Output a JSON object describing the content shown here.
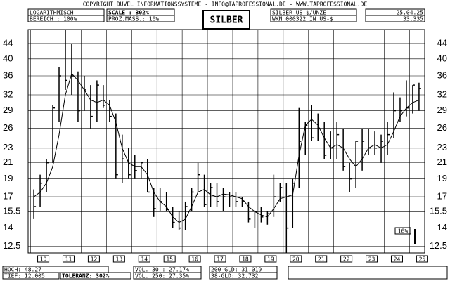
{
  "chart_data": {
    "type": "ohlc",
    "title": "SILBER",
    "log_scale": true,
    "grid": true,
    "color": "#000000",
    "xlim": [
      2009.9,
      2025.6
    ],
    "ylim": [
      12,
      48
    ],
    "xticks": [
      {
        "value": 2010.5,
        "label": "10"
      },
      {
        "value": 2011.5,
        "label": "11"
      },
      {
        "value": 2012.5,
        "label": "12"
      },
      {
        "value": 2013.5,
        "label": "13"
      },
      {
        "value": 2014.5,
        "label": "14"
      },
      {
        "value": 2015.5,
        "label": "15"
      },
      {
        "value": 2016.5,
        "label": "16"
      },
      {
        "value": 2017.5,
        "label": "17"
      },
      {
        "value": 2018.5,
        "label": "18"
      },
      {
        "value": 2019.5,
        "label": "19"
      },
      {
        "value": 2020.5,
        "label": "20"
      },
      {
        "value": 2021.5,
        "label": "21"
      },
      {
        "value": 2022.5,
        "label": "22"
      },
      {
        "value": 2023.5,
        "label": "23"
      },
      {
        "value": 2024.5,
        "label": "24"
      },
      {
        "value": 2025.5,
        "label": "25"
      }
    ],
    "yticks": [
      12.5,
      14,
      15.5,
      17,
      19,
      21,
      23,
      26,
      29,
      32,
      36,
      40,
      44
    ],
    "x": [
      2010.125,
      2010.375,
      2010.625,
      2010.875,
      2011.125,
      2011.375,
      2011.625,
      2011.875,
      2012.125,
      2012.375,
      2012.625,
      2012.875,
      2013.125,
      2013.375,
      2013.625,
      2013.875,
      2014.125,
      2014.375,
      2014.625,
      2014.875,
      2015.125,
      2015.375,
      2015.625,
      2015.875,
      2016.125,
      2016.375,
      2016.625,
      2016.875,
      2017.125,
      2017.375,
      2017.625,
      2017.875,
      2018.125,
      2018.375,
      2018.625,
      2018.875,
      2019.125,
      2019.375,
      2019.625,
      2019.875,
      2020.125,
      2020.375,
      2020.625,
      2020.875,
      2021.125,
      2021.375,
      2021.625,
      2021.875,
      2022.125,
      2022.375,
      2022.625,
      2022.875,
      2023.125,
      2023.375,
      2023.625,
      2023.875,
      2024.125,
      2024.375,
      2024.625,
      2024.875,
      2025.125,
      2025.375
    ],
    "high": [
      17.8,
      19.5,
      21.5,
      30,
      38,
      48,
      44,
      37,
      36,
      34,
      35,
      34,
      31,
      28.5,
      25,
      23,
      22,
      21,
      21.5,
      18,
      18,
      17.5,
      16,
      15.5,
      16.5,
      18,
      21,
      19.5,
      18.5,
      18.5,
      18,
      17.5,
      17.5,
      17,
      16.5,
      15.5,
      16,
      15.5,
      19.5,
      18.5,
      18.5,
      19,
      29.5,
      27,
      30,
      28.5,
      27,
      25.5,
      27,
      26,
      21,
      24,
      26,
      26,
      25.5,
      25,
      27,
      32.5,
      31.5,
      35,
      34,
      34.5
    ],
    "low": [
      14.8,
      16,
      17.5,
      21,
      27,
      33,
      32,
      27,
      29,
      26,
      27,
      29.5,
      27,
      19,
      18.5,
      19,
      19,
      19,
      17.5,
      15,
      15.5,
      15.5,
      14,
      13.8,
      13.8,
      15.5,
      17.5,
      16,
      16,
      16,
      15.5,
      16,
      16,
      16,
      14.5,
      14,
      14.5,
      14.3,
      15,
      16.5,
      12,
      14,
      18,
      22,
      24,
      24,
      21.5,
      21.5,
      21.5,
      20,
      17.5,
      18,
      20,
      22,
      22,
      21,
      22,
      24.5,
      27,
      28,
      28.5,
      29
    ],
    "close": [
      16,
      18.5,
      21,
      29.5,
      36,
      35,
      36,
      29,
      33,
      28,
      34,
      30,
      28,
      19.5,
      21.5,
      19.5,
      20,
      21,
      17.5,
      15.8,
      16.5,
      15.7,
      14.5,
      14,
      16,
      17.5,
      19.5,
      16.2,
      18,
      16.5,
      17,
      17,
      16.5,
      16.5,
      14.8,
      15.5,
      15,
      15.3,
      17,
      18,
      14,
      18.5,
      24,
      26.5,
      24.5,
      26,
      22,
      23,
      25,
      20.5,
      19,
      24,
      24,
      23,
      23,
      24,
      25,
      29,
      29,
      29.5,
      34,
      33.3
    ],
    "ma_values": [
      17,
      17.5,
      18.5,
      20.5,
      25,
      32,
      36.5,
      35,
      33,
      31,
      30.5,
      31,
      30,
      27,
      23,
      21,
      20.5,
      20.5,
      19.5,
      17.5,
      16.5,
      16,
      15,
      14.5,
      14.8,
      16,
      17.5,
      17.8,
      17.2,
      17,
      17.3,
      17.2,
      17,
      16.8,
      16,
      15.5,
      15.2,
      15,
      15.8,
      16.8,
      17,
      17.2,
      22,
      26.5,
      27.5,
      26.5,
      24.5,
      23,
      23.5,
      23,
      21.5,
      20.5,
      21.5,
      23,
      23.5,
      23,
      23.5,
      25.5,
      28,
      29.5,
      30.5,
      31
    ]
  },
  "header": {
    "copyright": "COPYRIGHT  DÜVEL INFORMATIONSSYSTEME  -  INFO@TAPROFESSIONAL.DE  -  WWW.TAPROFESSIONAL.DE",
    "scale_type": "LOGARITHMISCH",
    "range": "BEREICH :    100%",
    "scale": "SCALE : 302%",
    "percent": "PROZ.MASS.:  10%",
    "instrument": "SILBER US-$/UNZE",
    "wkn": "WKN 000322   IN US-$",
    "date": "25.04.25",
    "last": "33.335",
    "box": "10%"
  },
  "footer": {
    "high": "HOCH: 48.27",
    "low": "TIEF: 12.005",
    "tolerance": "TOLERANZ: 302%",
    "vol30": "VOL. 30 : 27.17%",
    "vol250": "VOL. 250: 27.35%",
    "gld200": "200-GLD: 31.019",
    "gld38": "38-GLD: 32.732"
  }
}
